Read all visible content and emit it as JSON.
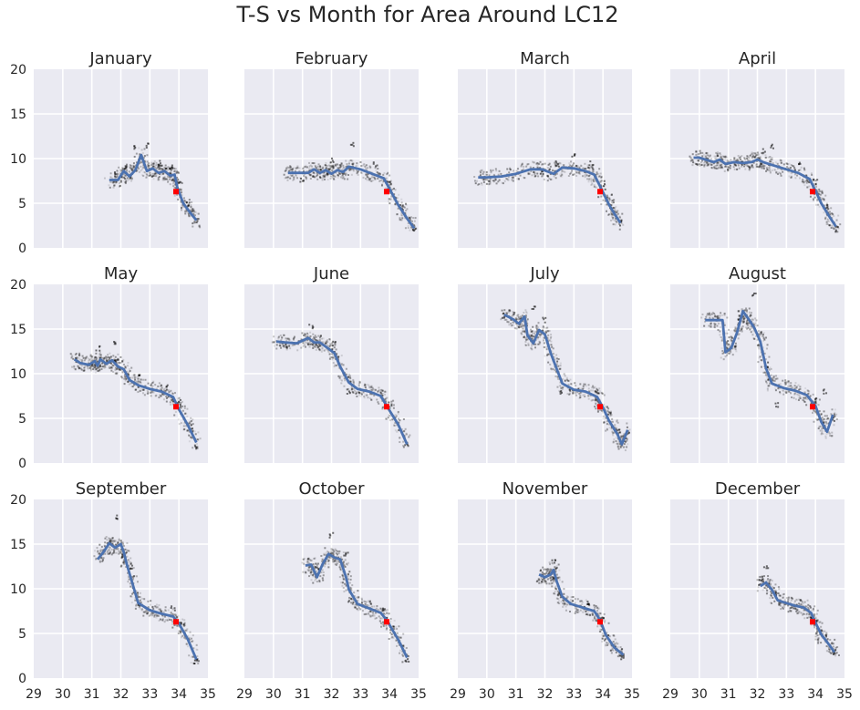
{
  "chart_data": {
    "type": "scatter",
    "title": "T-S vs Month for Area Around LC12",
    "grid": true,
    "layout": "3x4 small multiples, shared x and y axes",
    "xlim": [
      29,
      35
    ],
    "ylim": [
      0,
      20
    ],
    "x_ticks": [
      29,
      30,
      31,
      32,
      33,
      34,
      35
    ],
    "y_ticks": [
      0,
      5,
      10,
      15,
      20
    ],
    "colors": {
      "background": "#eaeaf2",
      "grid": "#ffffff",
      "points": "#000000",
      "line": "#4c72b0",
      "marker": "#ff0000"
    },
    "reference_point": {
      "x": 33.9,
      "y": 6.3
    },
    "panels": [
      {
        "title": "January",
        "line": [
          [
            31.6,
            7.6
          ],
          [
            31.9,
            7.6
          ],
          [
            32.1,
            8.6
          ],
          [
            32.3,
            8.0
          ],
          [
            32.5,
            8.7
          ],
          [
            32.7,
            10.4
          ],
          [
            32.9,
            8.6
          ],
          [
            33.1,
            8.9
          ],
          [
            33.3,
            8.4
          ],
          [
            33.5,
            8.6
          ],
          [
            33.7,
            8.1
          ],
          [
            33.85,
            8.2
          ],
          [
            33.95,
            6.7
          ],
          [
            34.15,
            5.0
          ],
          [
            34.4,
            3.9
          ],
          [
            34.6,
            3.1
          ]
        ],
        "points_region": [
          [
            31.8,
            8.3
          ],
          [
            32.2,
            9.0
          ],
          [
            32.5,
            11.2
          ],
          [
            32.9,
            11.5
          ],
          [
            33.3,
            9.5
          ],
          [
            33.7,
            9.0
          ],
          [
            34.0,
            7.2
          ],
          [
            34.3,
            5.0
          ],
          [
            34.6,
            3.0
          ]
        ]
      },
      {
        "title": "February",
        "line": [
          [
            30.5,
            8.4
          ],
          [
            30.7,
            8.4
          ],
          [
            31.2,
            8.4
          ],
          [
            31.4,
            8.8
          ],
          [
            31.6,
            8.4
          ],
          [
            31.8,
            8.7
          ],
          [
            32.0,
            8.3
          ],
          [
            32.2,
            8.7
          ],
          [
            32.4,
            8.5
          ],
          [
            32.6,
            9.1
          ],
          [
            33.0,
            8.8
          ],
          [
            33.4,
            8.3
          ],
          [
            33.8,
            7.8
          ],
          [
            34.0,
            6.6
          ],
          [
            34.3,
            4.8
          ],
          [
            34.6,
            3.3
          ],
          [
            34.85,
            2.2
          ]
        ],
        "points_region": [
          [
            31.0,
            7.5
          ],
          [
            32.0,
            9.8
          ],
          [
            32.7,
            11.7
          ],
          [
            33.5,
            9.3
          ],
          [
            34.0,
            7.3
          ],
          [
            34.4,
            4.5
          ],
          [
            34.85,
            2.0
          ]
        ]
      },
      {
        "title": "March",
        "line": [
          [
            29.7,
            7.9
          ],
          [
            30.0,
            7.9
          ],
          [
            30.5,
            8.0
          ],
          [
            31.0,
            8.3
          ],
          [
            31.5,
            8.8
          ],
          [
            31.9,
            8.8
          ],
          [
            32.3,
            8.3
          ],
          [
            32.6,
            9.0
          ],
          [
            33.0,
            8.9
          ],
          [
            33.4,
            8.6
          ],
          [
            33.7,
            8.2
          ],
          [
            33.9,
            6.9
          ],
          [
            34.2,
            4.9
          ],
          [
            34.4,
            3.8
          ],
          [
            34.6,
            2.8
          ]
        ],
        "points_region": [
          [
            31.9,
            8.5
          ],
          [
            32.4,
            9.5
          ],
          [
            33.0,
            10.5
          ],
          [
            33.6,
            9.5
          ],
          [
            34.0,
            7.2
          ],
          [
            34.3,
            4.5
          ],
          [
            34.6,
            2.8
          ]
        ]
      },
      {
        "title": "April",
        "line": [
          [
            29.8,
            10.1
          ],
          [
            30.0,
            10.1
          ],
          [
            30.2,
            9.9
          ],
          [
            30.5,
            9.6
          ],
          [
            30.7,
            9.9
          ],
          [
            30.9,
            9.4
          ],
          [
            31.2,
            9.6
          ],
          [
            31.5,
            9.5
          ],
          [
            31.8,
            9.6
          ],
          [
            32.0,
            9.9
          ],
          [
            32.2,
            9.6
          ],
          [
            32.5,
            9.3
          ],
          [
            33.0,
            8.8
          ],
          [
            33.4,
            8.4
          ],
          [
            33.8,
            7.7
          ],
          [
            34.0,
            6.4
          ],
          [
            34.2,
            5.0
          ],
          [
            34.5,
            3.4
          ],
          [
            34.7,
            2.4
          ]
        ],
        "points_region": [
          [
            31.5,
            9.5
          ],
          [
            32.2,
            10.8
          ],
          [
            32.5,
            11.3
          ],
          [
            33.5,
            9.5
          ],
          [
            34.0,
            7.4
          ],
          [
            34.4,
            4.5
          ],
          [
            34.7,
            2.1
          ]
        ]
      },
      {
        "title": "May",
        "line": [
          [
            30.4,
            11.6
          ],
          [
            30.6,
            11.2
          ],
          [
            30.9,
            11.0
          ],
          [
            31.1,
            11.4
          ],
          [
            31.2,
            10.9
          ],
          [
            31.3,
            11.6
          ],
          [
            31.5,
            11.1
          ],
          [
            31.7,
            11.5
          ],
          [
            31.9,
            10.8
          ],
          [
            32.1,
            10.5
          ],
          [
            32.3,
            9.3
          ],
          [
            32.6,
            8.7
          ],
          [
            33.0,
            8.3
          ],
          [
            33.4,
            8.0
          ],
          [
            33.8,
            7.4
          ],
          [
            34.0,
            6.0
          ],
          [
            34.3,
            4.3
          ],
          [
            34.6,
            2.3
          ]
        ],
        "points_region": [
          [
            30.5,
            11.5
          ],
          [
            31.2,
            12.8
          ],
          [
            31.8,
            13.3
          ],
          [
            32.6,
            10.0
          ],
          [
            33.6,
            8.5
          ],
          [
            34.0,
            6.8
          ],
          [
            34.4,
            4.0
          ],
          [
            34.6,
            1.9
          ]
        ]
      },
      {
        "title": "June",
        "line": [
          [
            30.1,
            13.6
          ],
          [
            30.4,
            13.5
          ],
          [
            30.8,
            13.4
          ],
          [
            31.2,
            14.0
          ],
          [
            31.4,
            13.5
          ],
          [
            31.6,
            13.5
          ],
          [
            31.9,
            12.8
          ],
          [
            32.1,
            12.3
          ],
          [
            32.3,
            10.8
          ],
          [
            32.6,
            9.0
          ],
          [
            32.9,
            8.3
          ],
          [
            33.3,
            8.0
          ],
          [
            33.7,
            7.5
          ],
          [
            33.9,
            6.4
          ],
          [
            34.3,
            4.3
          ],
          [
            34.6,
            2.1
          ]
        ],
        "points_region": [
          [
            30.5,
            13.0
          ],
          [
            31.3,
            15.3
          ],
          [
            32.1,
            13.3
          ],
          [
            32.6,
            8.0
          ],
          [
            33.7,
            7.8
          ],
          [
            34.0,
            6.5
          ],
          [
            34.6,
            1.9
          ]
        ]
      },
      {
        "title": "July",
        "line": [
          [
            30.6,
            16.6
          ],
          [
            30.9,
            16.1
          ],
          [
            31.1,
            15.6
          ],
          [
            31.3,
            16.4
          ],
          [
            31.4,
            14.3
          ],
          [
            31.6,
            13.4
          ],
          [
            31.8,
            14.9
          ],
          [
            32.0,
            14.4
          ],
          [
            32.2,
            12.3
          ],
          [
            32.4,
            10.6
          ],
          [
            32.6,
            8.9
          ],
          [
            33.0,
            8.2
          ],
          [
            33.4,
            8.0
          ],
          [
            33.8,
            7.4
          ],
          [
            34.0,
            6.2
          ],
          [
            34.2,
            4.8
          ],
          [
            34.5,
            3.2
          ],
          [
            34.65,
            2.1
          ],
          [
            34.85,
            3.7
          ]
        ],
        "points_region": [
          [
            30.6,
            16.5
          ],
          [
            31.6,
            17.5
          ],
          [
            32.0,
            16.0
          ],
          [
            32.6,
            8.0
          ],
          [
            33.8,
            8.0
          ],
          [
            34.2,
            5.5
          ],
          [
            34.5,
            3.5
          ],
          [
            34.85,
            3.5
          ]
        ]
      },
      {
        "title": "August",
        "line": [
          [
            30.2,
            16.0
          ],
          [
            30.5,
            16.0
          ],
          [
            30.8,
            16.0
          ],
          [
            30.9,
            12.4
          ],
          [
            31.1,
            12.9
          ],
          [
            31.3,
            14.6
          ],
          [
            31.5,
            17.0
          ],
          [
            31.7,
            16.1
          ],
          [
            31.9,
            15.1
          ],
          [
            32.1,
            13.6
          ],
          [
            32.3,
            10.6
          ],
          [
            32.5,
            8.9
          ],
          [
            32.9,
            8.4
          ],
          [
            33.3,
            8.1
          ],
          [
            33.7,
            7.6
          ],
          [
            34.0,
            6.4
          ],
          [
            34.2,
            4.6
          ],
          [
            34.4,
            3.5
          ],
          [
            34.6,
            5.4
          ]
        ],
        "points_region": [
          [
            31.4,
            16.3
          ],
          [
            31.9,
            19.0
          ],
          [
            32.3,
            11.0
          ],
          [
            32.7,
            6.5
          ],
          [
            34.0,
            7.0
          ],
          [
            34.3,
            8.0
          ],
          [
            34.6,
            5.0
          ]
        ]
      },
      {
        "title": "September",
        "line": [
          [
            31.2,
            13.3
          ],
          [
            31.4,
            14.1
          ],
          [
            31.6,
            15.1
          ],
          [
            31.8,
            14.6
          ],
          [
            32.0,
            15.0
          ],
          [
            32.1,
            14.1
          ],
          [
            32.2,
            12.8
          ],
          [
            32.4,
            10.6
          ],
          [
            32.6,
            8.4
          ],
          [
            33.0,
            7.6
          ],
          [
            33.4,
            7.2
          ],
          [
            33.8,
            6.9
          ],
          [
            34.0,
            6.1
          ],
          [
            34.3,
            4.4
          ],
          [
            34.6,
            2.1
          ]
        ],
        "points_region": [
          [
            31.6,
            15.0
          ],
          [
            31.9,
            18.0
          ],
          [
            32.4,
            12.5
          ],
          [
            32.6,
            8.0
          ],
          [
            33.8,
            7.8
          ],
          [
            34.1,
            6.2
          ],
          [
            34.6,
            1.9
          ]
        ]
      },
      {
        "title": "October",
        "line": [
          [
            31.1,
            12.6
          ],
          [
            31.3,
            12.7
          ],
          [
            31.5,
            11.3
          ],
          [
            31.7,
            12.8
          ],
          [
            31.9,
            13.9
          ],
          [
            32.1,
            13.5
          ],
          [
            32.3,
            13.3
          ],
          [
            32.5,
            11.3
          ],
          [
            32.6,
            9.9
          ],
          [
            32.9,
            8.3
          ],
          [
            33.3,
            7.8
          ],
          [
            33.7,
            7.3
          ],
          [
            33.9,
            6.5
          ],
          [
            34.3,
            4.3
          ],
          [
            34.6,
            2.3
          ]
        ],
        "points_region": [
          [
            31.5,
            12.5
          ],
          [
            32.0,
            16.0
          ],
          [
            32.5,
            14.0
          ],
          [
            32.8,
            8.5
          ],
          [
            33.8,
            7.5
          ],
          [
            34.1,
            5.5
          ],
          [
            34.6,
            2.0
          ]
        ]
      },
      {
        "title": "November",
        "line": [
          [
            31.8,
            11.6
          ],
          [
            32.0,
            11.3
          ],
          [
            32.2,
            11.6
          ],
          [
            32.3,
            12.1
          ],
          [
            32.4,
            10.9
          ],
          [
            32.6,
            9.1
          ],
          [
            32.9,
            8.3
          ],
          [
            33.3,
            7.9
          ],
          [
            33.7,
            7.5
          ],
          [
            33.9,
            6.5
          ],
          [
            34.1,
            4.8
          ],
          [
            34.4,
            3.4
          ],
          [
            34.7,
            2.6
          ]
        ],
        "points_region": [
          [
            31.9,
            11.8
          ],
          [
            32.3,
            13.0
          ],
          [
            32.5,
            9.5
          ],
          [
            33.5,
            8.3
          ],
          [
            34.0,
            6.7
          ],
          [
            34.4,
            3.5
          ],
          [
            34.7,
            2.4
          ]
        ]
      },
      {
        "title": "December",
        "line": [
          [
            32.1,
            10.3
          ],
          [
            32.3,
            10.7
          ],
          [
            32.5,
            9.9
          ],
          [
            32.7,
            8.7
          ],
          [
            33.0,
            8.4
          ],
          [
            33.3,
            8.1
          ],
          [
            33.6,
            7.9
          ],
          [
            33.85,
            7.3
          ],
          [
            34.0,
            6.2
          ],
          [
            34.2,
            4.9
          ],
          [
            34.5,
            3.6
          ],
          [
            34.65,
            2.9
          ]
        ],
        "points_region": [
          [
            32.1,
            10.7
          ],
          [
            32.3,
            12.3
          ],
          [
            32.6,
            9.5
          ],
          [
            33.3,
            8.0
          ],
          [
            33.9,
            6.8
          ],
          [
            34.3,
            4.5
          ],
          [
            34.65,
            2.9
          ]
        ]
      }
    ]
  }
}
